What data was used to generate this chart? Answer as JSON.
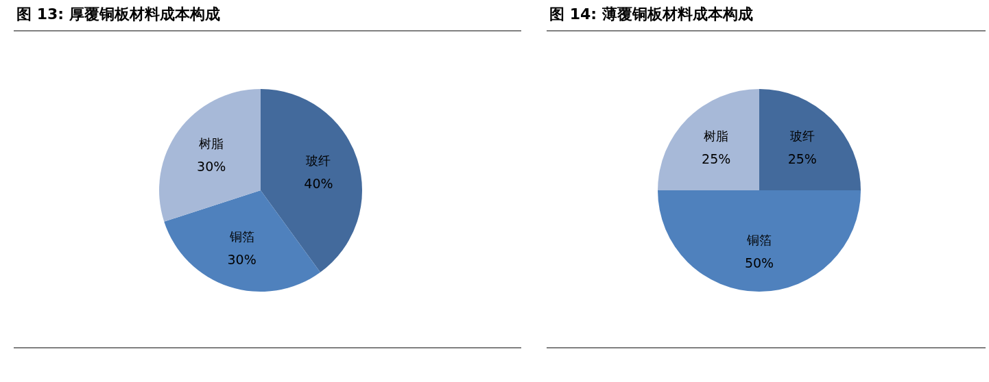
{
  "chart_data": [
    {
      "type": "pie",
      "title": "图 13: 厚覆铜板材料成本构成",
      "categories": [
        "玻纤",
        "铜箔",
        "树脂"
      ],
      "values": [
        40,
        30,
        30
      ],
      "colors": [
        "#436a9c",
        "#4f81bd",
        "#a7b9d8"
      ],
      "value_labels": [
        "40%",
        "30%",
        "30%"
      ]
    },
    {
      "type": "pie",
      "title": "图 14: 薄覆铜板材料成本构成",
      "categories": [
        "玻纤",
        "铜箔",
        "树脂"
      ],
      "values": [
        25,
        50,
        25
      ],
      "colors": [
        "#436a9c",
        "#4f81bd",
        "#a7b9d8"
      ],
      "value_labels": [
        "25%",
        "50%",
        "25%"
      ]
    }
  ]
}
